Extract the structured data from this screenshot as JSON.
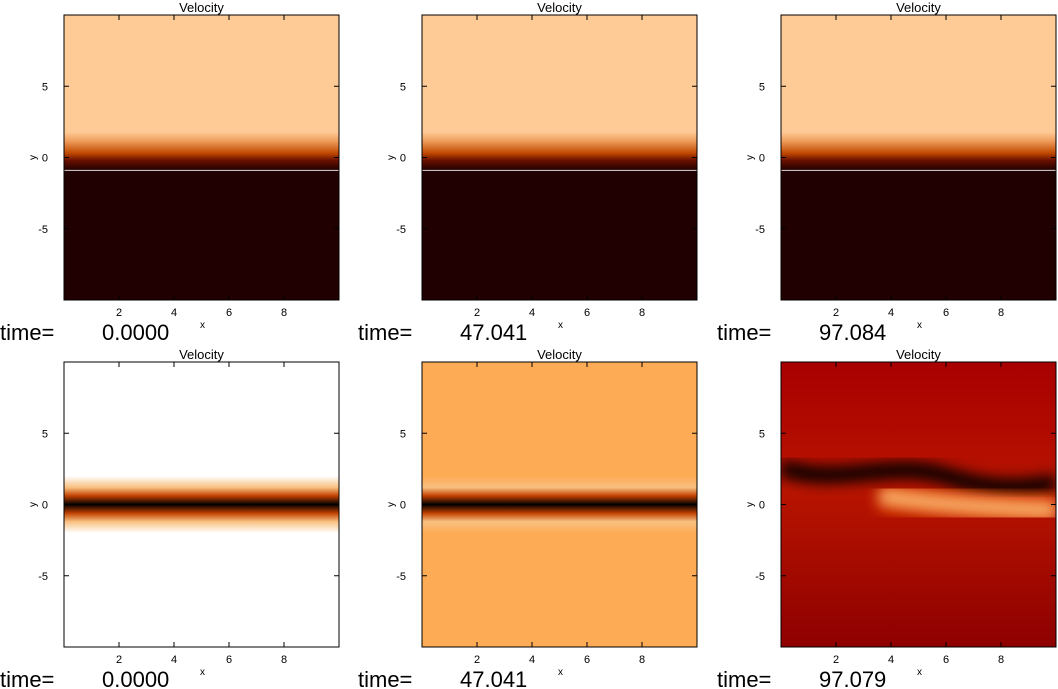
{
  "chart_data": [
    {
      "type": "heatmap",
      "title": "Velocity",
      "xlabel": "x",
      "ylabel": "y",
      "xlim": [
        0,
        10
      ],
      "ylim": [
        -10,
        10
      ],
      "xticks": [
        "2",
        "4",
        "6",
        "8"
      ],
      "yticks": [
        "5",
        "0",
        "-5"
      ],
      "time_label": "time=",
      "time_value": "0.0000",
      "profile": "step",
      "colors": {
        "top": "#fecb96",
        "bottom": "#200000"
      },
      "mark_line_y": -0.9
    },
    {
      "type": "heatmap",
      "title": "Velocity",
      "xlabel": "x",
      "ylabel": "y",
      "xlim": [
        0,
        10
      ],
      "ylim": [
        -10,
        10
      ],
      "xticks": [
        "2",
        "4",
        "6",
        "8"
      ],
      "yticks": [
        "5",
        "0",
        "-5"
      ],
      "time_label": "time=",
      "time_value": "47.041",
      "profile": "step",
      "colors": {
        "top": "#fecb96",
        "bottom": "#200000"
      },
      "mark_line_y": -0.9
    },
    {
      "type": "heatmap",
      "title": "Velocity",
      "xlabel": "x",
      "ylabel": "y",
      "xlim": [
        0,
        10
      ],
      "ylim": [
        -10,
        10
      ],
      "xticks": [
        "2",
        "4",
        "6",
        "8"
      ],
      "yticks": [
        "5",
        "0",
        "-5"
      ],
      "time_label": "time=",
      "time_value": "97.084",
      "profile": "step",
      "colors": {
        "top": "#fecb96",
        "bottom": "#200000"
      },
      "mark_line_y": -0.9
    },
    {
      "type": "heatmap",
      "title": "Velocity",
      "xlabel": "x",
      "ylabel": "y",
      "xlim": [
        0,
        10
      ],
      "ylim": [
        -10,
        10
      ],
      "xticks": [
        "2",
        "4",
        "6",
        "8"
      ],
      "yticks": [
        "5",
        "0",
        "-5"
      ],
      "time_label": "time=",
      "time_value": "0.0000",
      "profile": "band",
      "colors": {
        "background": "#ffffff",
        "band": "#000000"
      }
    },
    {
      "type": "heatmap",
      "title": "Velocity",
      "xlabel": "x",
      "ylabel": "y",
      "xlim": [
        0,
        10
      ],
      "ylim": [
        -10,
        10
      ],
      "xticks": [
        "2",
        "4",
        "6",
        "8"
      ],
      "yticks": [
        "5",
        "0",
        "-5"
      ],
      "time_label": "time=",
      "time_value": "47.041",
      "profile": "band",
      "colors": {
        "background": "#fdab55",
        "band": "#000000"
      }
    },
    {
      "type": "heatmap",
      "title": "Velocity",
      "xlabel": "x",
      "ylabel": "y",
      "xlim": [
        0,
        10
      ],
      "ylim": [
        -10,
        10
      ],
      "xticks": [
        "2",
        "4",
        "6",
        "8"
      ],
      "yticks": [
        "5",
        "0",
        "-5"
      ],
      "time_label": "time=",
      "time_value": "97.079",
      "profile": "wave",
      "colors": {
        "top": "#a80000",
        "mid": "#b81400",
        "bottom": "#8e0000",
        "dark": "#000000",
        "bright": "#ffdca0"
      }
    }
  ]
}
